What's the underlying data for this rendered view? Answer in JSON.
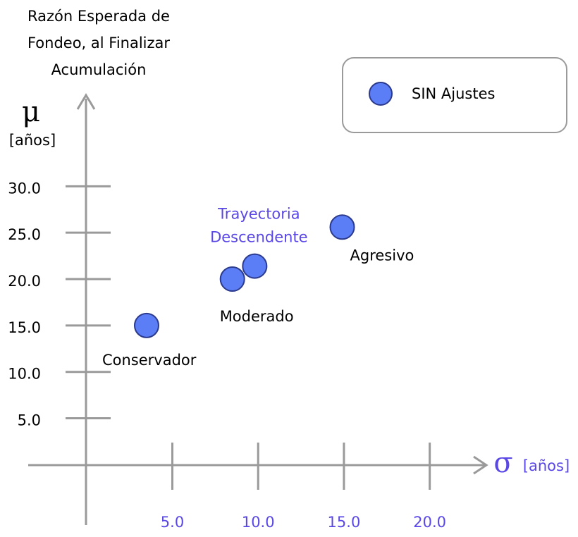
{
  "chart_data": {
    "type": "scatter",
    "y_label": [
      "Razón Esperada de",
      "Fondeo, al Finalizar",
      "Acumulación"
    ],
    "y_symbol": "μ",
    "y_unit": "[años]",
    "x_symbol": "σ",
    "x_unit": "[años]",
    "xlim": [
      -3.4,
      23.3
    ],
    "ylim": [
      -6.5,
      40.2
    ],
    "xticks": [
      {
        "value": 5,
        "label": "5.0"
      },
      {
        "value": 10,
        "label": "10.0"
      },
      {
        "value": 15,
        "label": "15.0"
      },
      {
        "value": 20,
        "label": "20.0"
      }
    ],
    "yticks": [
      {
        "value": 5,
        "label": "5.0"
      },
      {
        "value": 10,
        "label": "10.0"
      },
      {
        "value": 15,
        "label": "15.0"
      },
      {
        "value": 20,
        "label": "20.0"
      },
      {
        "value": 25,
        "label": "25.0"
      },
      {
        "value": 30,
        "label": "30.0"
      }
    ],
    "legend": "top-right",
    "series": [
      {
        "name": "SIN Ajustes",
        "color": "#5b7ef6",
        "x": [
          3.5,
          8.5,
          9.8,
          14.9
        ],
        "values": [
          15,
          20,
          21.4,
          25.6
        ],
        "point_labels": [
          [
            "Conservador"
          ],
          [
            "Moderado"
          ],
          [
            "Trayectoria",
            "Descendente"
          ],
          [
            "Agresivo"
          ]
        ]
      }
    ]
  }
}
